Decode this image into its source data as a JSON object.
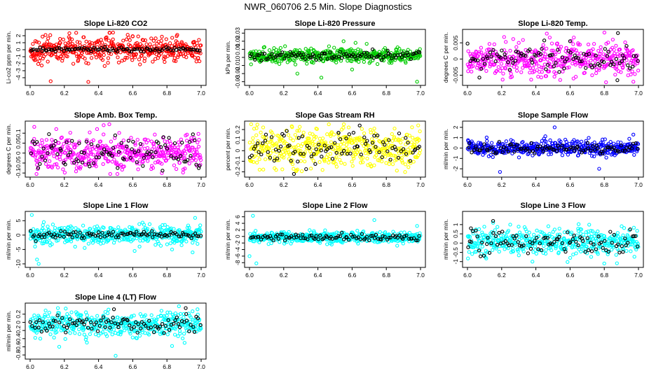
{
  "page": {
    "title": "NWR_060706  2.5 Min. Slope Diagnostics"
  },
  "chart_data": [
    {
      "type": "scatter",
      "title": "Slope Li-820 CO2",
      "xlabel": "",
      "ylabel": "Li-co2 ppm per min.",
      "xlim": [
        6.0,
        7.0
      ],
      "ylim": [
        -4.8,
        2.6
      ],
      "xticks": [
        "6.0",
        "6.2",
        "6.4",
        "6.6",
        "6.8",
        "7.0"
      ],
      "yticks": [
        -4,
        -3,
        -2,
        -1,
        0,
        1,
        2
      ],
      "series": [
        {
          "color": "#ff0000",
          "spread": 0.9,
          "outliers": [
            [
              6.12,
              -4.5
            ],
            [
              6.34,
              -4.6
            ],
            [
              6.09,
              2.1
            ],
            [
              6.6,
              1.9
            ]
          ]
        },
        {
          "color": "#000000",
          "spread": 0.15,
          "center": 0.05
        }
      ]
    },
    {
      "type": "scatter",
      "title": "Slope Li-820 Pressure",
      "xlabel": "",
      "ylabel": "kPa per min.",
      "xlim": [
        6.0,
        7.0
      ],
      "ylim": [
        -0.032,
        0.032
      ],
      "xticks": [
        "6.0",
        "6.2",
        "6.4",
        "6.6",
        "6.8",
        "7.0"
      ],
      "yticks": [
        -0.03,
        -0.02,
        -0.01,
        0.0,
        0.01,
        0.02,
        0.03
      ],
      "series": [
        {
          "color": "#00cc00",
          "spread": 0.004,
          "center": 0.002,
          "outliers": [
            [
              6.55,
              0.02
            ],
            [
              6.62,
              0.018
            ],
            [
              6.28,
              -0.02
            ],
            [
              6.98,
              -0.03
            ],
            [
              6.42,
              -0.025
            ],
            [
              6.6,
              -0.015
            ]
          ]
        },
        {
          "color": "#000000",
          "spread": 0.003,
          "center": 0.002
        }
      ]
    },
    {
      "type": "scatter",
      "title": "Slope Li-820 Temp.",
      "xlabel": "",
      "ylabel": "degrees C per min.",
      "xlim": [
        6.0,
        7.0
      ],
      "ylim": [
        -0.0075,
        0.0085
      ],
      "xticks": [
        "6.0",
        "6.2",
        "6.4",
        "6.6",
        "6.8",
        "7.0"
      ],
      "yticks": [
        -0.005,
        0.0,
        0.005
      ],
      "series": [
        {
          "color": "#ff00ff",
          "spread": 0.0025,
          "center": 0.0,
          "outliers": [
            [
              6.62,
              -0.006
            ],
            [
              6.97,
              -0.007
            ],
            [
              6.85,
              0.006
            ],
            [
              6.3,
              0.005
            ]
          ]
        },
        {
          "color": "#000000",
          "spread": 0.002,
          "center": 0.0,
          "outliers": [
            [
              6.88,
              0.008
            ],
            [
              6.6,
              0.0055
            ]
          ]
        }
      ]
    },
    {
      "type": "scatter",
      "title": "Slope Amb. Box Temp.",
      "xlabel": "",
      "ylabel": "degrees C per min.",
      "xlim": [
        6.0,
        7.0
      ],
      "ylim": [
        -0.11,
        0.15
      ],
      "xticks": [
        "6.0",
        "6.2",
        "6.4",
        "6.6",
        "6.8",
        "7.0"
      ],
      "yticks": [
        -0.1,
        -0.05,
        0.0,
        0.05,
        0.1
      ],
      "series": [
        {
          "color": "#ff00ff",
          "spread": 0.045,
          "center": 0.0,
          "outliers": [
            [
              6.43,
              0.14
            ],
            [
              6.77,
              -0.1
            ]
          ]
        },
        {
          "color": "#000000",
          "spread": 0.04,
          "center": 0.0
        }
      ]
    },
    {
      "type": "scatter",
      "title": "Slope Gas Stream RH",
      "xlabel": "",
      "ylabel": "percent per min.",
      "xlim": [
        6.0,
        7.0
      ],
      "ylim": [
        -0.23,
        0.26
      ],
      "xticks": [
        "6.0",
        "6.2",
        "6.4",
        "6.6",
        "6.8",
        "7.0"
      ],
      "yticks": [
        -0.2,
        -0.1,
        0.0,
        0.1,
        0.2
      ],
      "series": [
        {
          "color": "#ffff00",
          "spread": 0.09,
          "center": 0.02,
          "outliers": [
            [
              6.08,
              0.22
            ],
            [
              6.58,
              0.22
            ],
            [
              6.73,
              0.21
            ]
          ]
        },
        {
          "color": "#000000",
          "spread": 0.08,
          "center": 0.02,
          "outliers": [
            [
              6.26,
              -0.22
            ],
            [
              6.52,
              0.17
            ]
          ]
        }
      ]
    },
    {
      "type": "scatter",
      "title": "Slope Sample Flow",
      "xlabel": "",
      "ylabel": "ml/min per min.",
      "xlim": [
        6.0,
        7.0
      ],
      "ylim": [
        -2.6,
        2.4
      ],
      "xticks": [
        "6.0",
        "6.2",
        "6.4",
        "6.6",
        "6.8",
        "7.0"
      ],
      "yticks": [
        -2,
        -1,
        0,
        1,
        2
      ],
      "series": [
        {
          "color": "#0000ff",
          "spread": 0.35,
          "center": 0.0,
          "outliers": [
            [
              6.51,
              2.0
            ],
            [
              6.19,
              -2.3
            ],
            [
              6.77,
              -2.0
            ],
            [
              6.97,
              1.3
            ]
          ]
        },
        {
          "color": "#000000",
          "spread": 0.25,
          "center": 0.0
        }
      ]
    },
    {
      "type": "scatter",
      "title": "Slope Line 1 Flow",
      "xlabel": "",
      "ylabel": "ml/min per min.",
      "xlim": [
        6.0,
        7.0
      ],
      "ylim": [
        -10.5,
        7.5
      ],
      "xticks": [
        "6.0",
        "6.2",
        "6.4",
        "6.6",
        "6.8",
        "7.0"
      ],
      "yticks": [
        -10,
        -5,
        0,
        5
      ],
      "series": [
        {
          "color": "#00ffff",
          "spread": 1.6,
          "center": 0.0,
          "outliers": [
            [
              6.01,
              7
            ],
            [
              6.04,
              -8.5
            ],
            [
              6.05,
              -10
            ],
            [
              6.08,
              4.5
            ],
            [
              6.83,
              -5
            ],
            [
              6.95,
              -6
            ]
          ]
        },
        {
          "color": "#000000",
          "spread": 0.7,
          "center": 0.0
        }
      ]
    },
    {
      "type": "scatter",
      "title": "Slope Line 2 Flow",
      "xlabel": "",
      "ylabel": "ml/min per min.",
      "xlim": [
        6.0,
        7.0
      ],
      "ylim": [
        -8.8,
        7.0
      ],
      "xticks": [
        "6.0",
        "6.2",
        "6.4",
        "6.6",
        "6.8",
        "7.0"
      ],
      "yticks": [
        -8,
        -6,
        -4,
        -2,
        0,
        2,
        4,
        6
      ],
      "series": [
        {
          "color": "#00ffff",
          "spread": 0.8,
          "center": -0.3,
          "outliers": [
            [
              6.02,
              6.3
            ],
            [
              6.0,
              -6
            ],
            [
              6.04,
              -8.2
            ],
            [
              6.73,
              5.0
            ],
            [
              6.98,
              3.2
            ]
          ]
        },
        {
          "color": "#000000",
          "spread": 0.5,
          "center": -0.3
        }
      ]
    },
    {
      "type": "scatter",
      "title": "Slope Line 3 Flow",
      "xlabel": "",
      "ylabel": "ml/min per min.",
      "xlim": [
        6.0,
        7.0
      ],
      "ylim": [
        -1.2,
        1.6
      ],
      "xticks": [
        "6.0",
        "6.2",
        "6.4",
        "6.6",
        "6.8",
        "7.0"
      ],
      "yticks": [
        -1.0,
        -0.5,
        0.0,
        0.5,
        1.0
      ],
      "series": [
        {
          "color": "#00ffff",
          "spread": 0.35,
          "center": 0.05,
          "outliers": [
            [
              6.15,
              1.1
            ],
            [
              6.25,
              1.0
            ],
            [
              6.8,
              -1.1
            ],
            [
              6.38,
              -1.0
            ]
          ]
        },
        {
          "color": "#000000",
          "spread": 0.3,
          "center": 0.05,
          "outliers": [
            [
              6.02,
              0.8
            ],
            [
              6.15,
              1.2
            ]
          ]
        }
      ]
    },
    {
      "type": "scatter",
      "title": "Slope Line 4 (LT) Flow",
      "xlabel": "",
      "ylabel": "ml/min per min.",
      "xlim": [
        6.0,
        7.0
      ],
      "ylim": [
        -0.85,
        0.42
      ],
      "xticks": [
        "6.0",
        "6.2",
        "6.4",
        "6.6",
        "6.8",
        "7.0"
      ],
      "yticks": [
        -0.8,
        -0.6,
        -0.4,
        -0.2,
        0.0,
        0.2
      ],
      "series": [
        {
          "color": "#00ffff",
          "spread": 0.15,
          "center": -0.05,
          "outliers": [
            [
              6.5,
              -0.82
            ],
            [
              6.83,
              -0.58
            ],
            [
              6.17,
              -0.6
            ],
            [
              6.03,
              -0.38
            ]
          ]
        },
        {
          "color": "#000000",
          "spread": 0.1,
          "center": -0.05,
          "outliers": [
            [
              6.49,
              0.32
            ],
            [
              6.91,
              0.35
            ]
          ]
        }
      ]
    }
  ]
}
